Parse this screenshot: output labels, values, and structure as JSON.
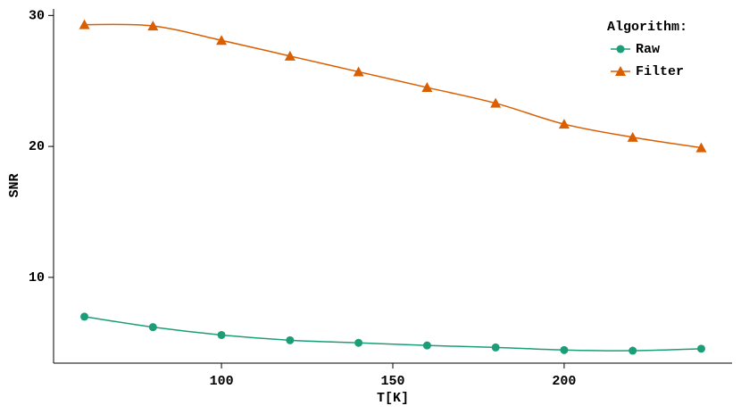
{
  "chart_data": {
    "type": "line",
    "x_label": "T[K]",
    "y_label": "SNR",
    "x": [
      60,
      80,
      100,
      120,
      140,
      160,
      180,
      200,
      220,
      240
    ],
    "series": [
      {
        "name": "Raw",
        "color": "#1b9e77",
        "marker": "circle",
        "values": [
          7.0,
          6.2,
          5.6,
          5.2,
          5.0,
          4.8,
          4.65,
          4.45,
          4.4,
          4.55
        ]
      },
      {
        "name": "Filter",
        "color": "#d95f02",
        "marker": "triangle",
        "values": [
          29.3,
          29.2,
          28.1,
          26.9,
          25.7,
          24.5,
          23.3,
          21.7,
          20.7,
          19.9
        ]
      }
    ],
    "xlim": [
      51,
      249
    ],
    "ylim": [
      3.45,
      30.5
    ],
    "xticks": [
      100,
      150,
      200
    ],
    "yticks": [
      10,
      20,
      30
    ],
    "legend_title": "Algorithm:",
    "legend_position": "top-right"
  }
}
